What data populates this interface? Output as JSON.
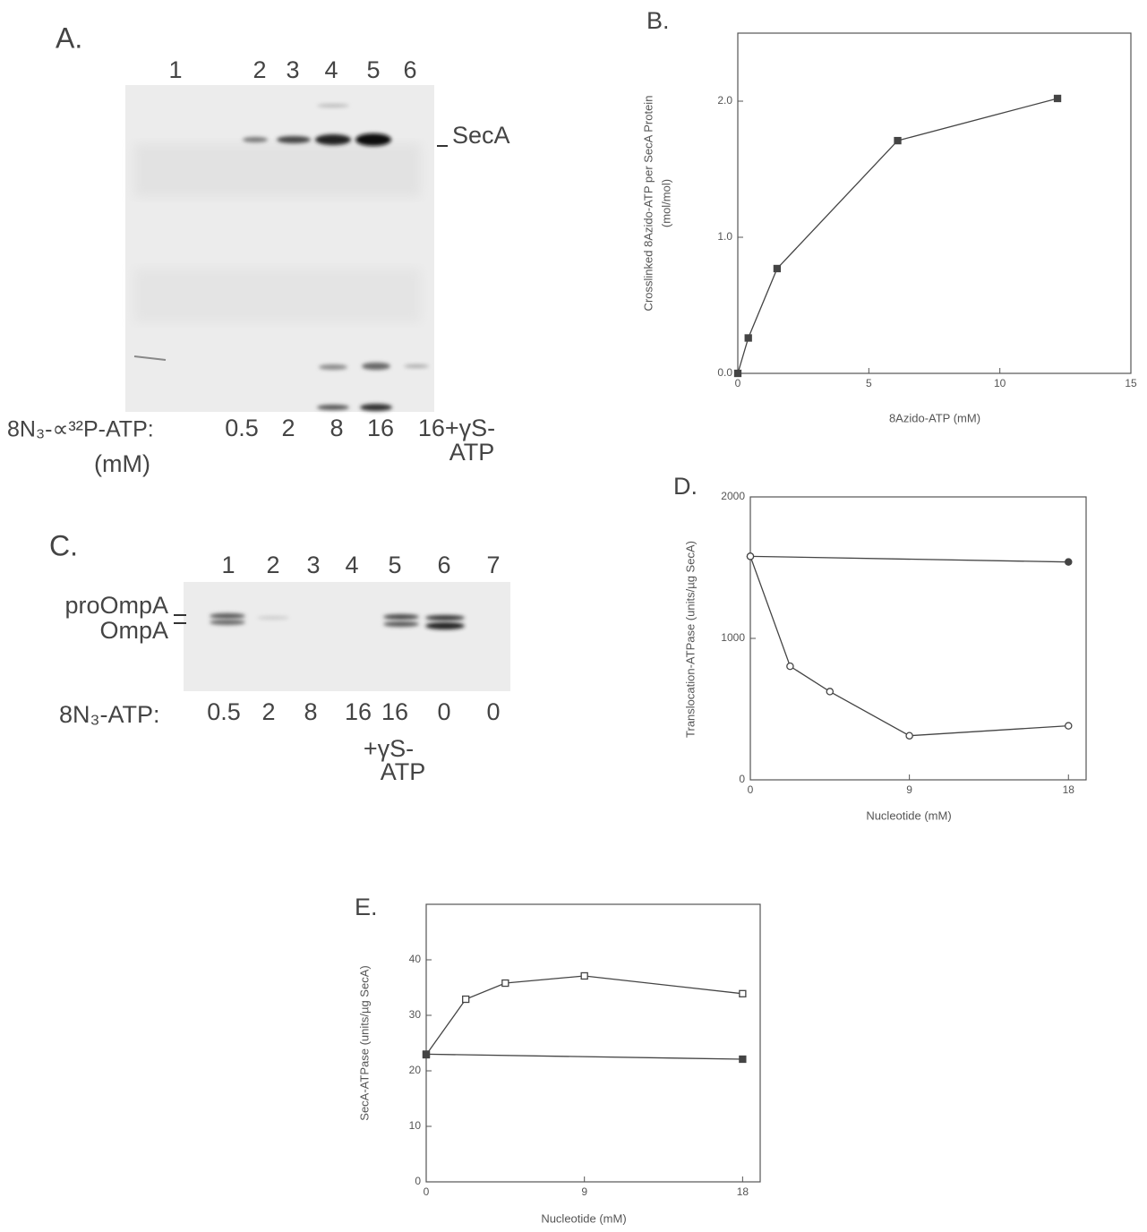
{
  "gel_a": {
    "label": "A.",
    "lanes": [
      "1",
      "2",
      "3",
      "4",
      "5",
      "6"
    ],
    "band_label": "SecA",
    "row_label": "8N₃-∝³²P-ATP:",
    "row_unit": "(mM)",
    "concentrations": [
      "0.5",
      "2",
      "8",
      "16",
      "16+γS-"
    ],
    "note": "ATP"
  },
  "gel_c": {
    "label": "C.",
    "lanes": [
      "1",
      "2",
      "3",
      "4",
      "5",
      "6",
      "7"
    ],
    "band_labels": [
      "proOmpA",
      "OmpA"
    ],
    "row_label": "8N₃-ATP:",
    "concentrations": [
      "0.5",
      "2",
      "8",
      "16",
      "16",
      "0",
      "0"
    ],
    "note": [
      "+γS-",
      "ATP"
    ]
  },
  "chart_data": [
    {
      "type": "line",
      "title": "B.",
      "xlabel": "8Azido-ATP   (mM)",
      "ylabel": [
        "Crosslinked 8Azido-ATP per SecA Protein",
        "(mol/mol)"
      ],
      "xlim": [
        0,
        15
      ],
      "ylim": [
        0,
        2.5
      ],
      "xticks": [
        0,
        5,
        10,
        15
      ],
      "yticks": [
        {
          "value": 0,
          "label": "0.0"
        },
        {
          "value": 1,
          "label": "1.0"
        },
        {
          "value": 2,
          "label": "2.0"
        }
      ],
      "series": [
        {
          "color": "#444444",
          "marker": "square-filled",
          "x": [
            0,
            0.4,
            1.5,
            6.1,
            12.2
          ],
          "values": [
            0,
            0.26,
            0.77,
            1.71,
            2.02
          ]
        }
      ]
    },
    {
      "type": "line",
      "title": "D.",
      "xlabel": "Nucleotide (mM)",
      "ylabel": [
        "Translocation-ATPase (units/µg SecA)"
      ],
      "xlim": [
        0,
        19
      ],
      "ylim": [
        0,
        2000
      ],
      "xticks": [
        0,
        9,
        18
      ],
      "yticks": [
        0,
        1000,
        2000
      ],
      "series": [
        {
          "color": "#444444",
          "marker": "circle-filled",
          "x": [
            0,
            18
          ],
          "values": [
            1580,
            1540
          ]
        },
        {
          "color": "#444444",
          "marker": "circle-open",
          "x": [
            0,
            2.25,
            4.5,
            9,
            18
          ],
          "values": [
            1580,
            803,
            624,
            312,
            382
          ]
        }
      ]
    },
    {
      "type": "line",
      "title": "E.",
      "xlabel": "Nucleotide (mM)",
      "ylabel": [
        "SecA-ATPase (units/µg SecA)"
      ],
      "xlim": [
        0,
        19
      ],
      "ylim": [
        0,
        50
      ],
      "xticks": [
        0,
        9,
        18
      ],
      "yticks": [
        0,
        10,
        20,
        30,
        40
      ],
      "series": [
        {
          "color": "#444444",
          "marker": "square-open",
          "x": [
            0,
            2.25,
            4.5,
            9,
            18
          ],
          "values": [
            22.9,
            32.9,
            35.8,
            37.1,
            33.9
          ]
        },
        {
          "color": "#444444",
          "marker": "square-filled",
          "x": [
            0,
            18
          ],
          "values": [
            23,
            22.1
          ]
        }
      ]
    }
  ]
}
